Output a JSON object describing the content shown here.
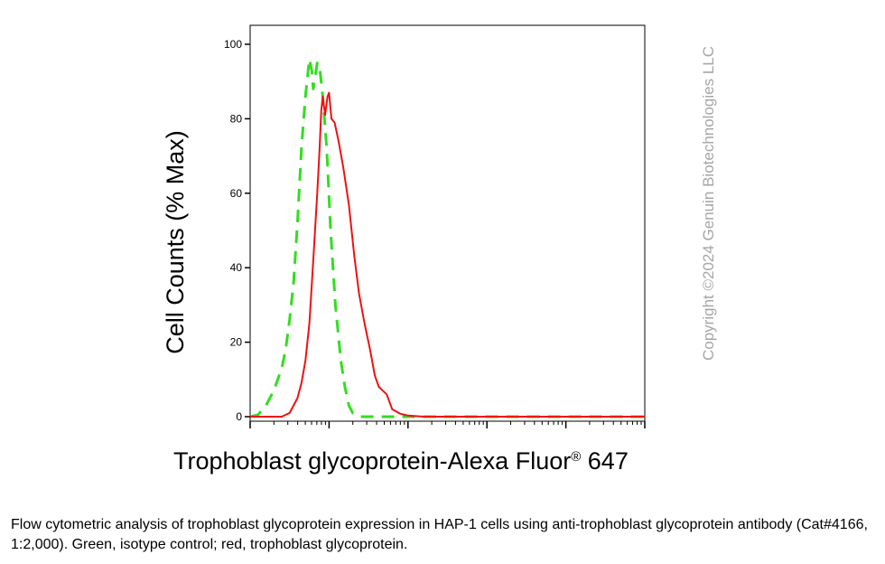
{
  "chart_data": {
    "type": "line",
    "ylabel": "Cell Counts (% Max)",
    "xlabel": "Trophoblast glycoprotein-Alexa Fluor",
    "xlabel_mark": "®",
    "xlabel_suffix": " 647",
    "yticks": [
      "0",
      "20",
      "40",
      "60",
      "80",
      "100"
    ],
    "ylim": [
      0,
      100
    ],
    "xscale": "log",
    "xlim": [
      0,
      5
    ],
    "grid": false,
    "series": [
      {
        "color": "#33dd22",
        "style": "dashed",
        "points": [
          [
            0.0,
            0
          ],
          [
            0.1,
            0.5
          ],
          [
            0.2,
            3
          ],
          [
            0.3,
            7
          ],
          [
            0.4,
            13
          ],
          [
            0.45,
            18
          ],
          [
            0.5,
            26
          ],
          [
            0.55,
            36
          ],
          [
            0.6,
            52
          ],
          [
            0.65,
            72
          ],
          [
            0.7,
            86
          ],
          [
            0.75,
            96
          ],
          [
            0.78,
            93
          ],
          [
            0.8,
            88
          ],
          [
            0.85,
            95
          ],
          [
            0.88,
            94
          ],
          [
            0.92,
            86
          ],
          [
            0.97,
            72
          ],
          [
            1.02,
            50
          ],
          [
            1.08,
            30
          ],
          [
            1.15,
            15
          ],
          [
            1.2,
            8
          ],
          [
            1.25,
            3
          ],
          [
            1.3,
            1
          ],
          [
            1.4,
            0
          ],
          [
            5.0,
            0
          ]
        ]
      },
      {
        "color": "#ee1111",
        "style": "solid",
        "points": [
          [
            0.0,
            0
          ],
          [
            0.4,
            0
          ],
          [
            0.5,
            1
          ],
          [
            0.55,
            3
          ],
          [
            0.6,
            5
          ],
          [
            0.65,
            9
          ],
          [
            0.7,
            15
          ],
          [
            0.75,
            25
          ],
          [
            0.8,
            42
          ],
          [
            0.85,
            60
          ],
          [
            0.88,
            72
          ],
          [
            0.9,
            82
          ],
          [
            0.92,
            86
          ],
          [
            0.95,
            81
          ],
          [
            0.98,
            86
          ],
          [
            1.0,
            87
          ],
          [
            1.03,
            80
          ],
          [
            1.07,
            79
          ],
          [
            1.12,
            74
          ],
          [
            1.18,
            67
          ],
          [
            1.25,
            57
          ],
          [
            1.32,
            43
          ],
          [
            1.38,
            33
          ],
          [
            1.45,
            25
          ],
          [
            1.52,
            18
          ],
          [
            1.58,
            11
          ],
          [
            1.63,
            8
          ],
          [
            1.68,
            7
          ],
          [
            1.73,
            6
          ],
          [
            1.8,
            2
          ],
          [
            1.9,
            0.8
          ],
          [
            2.0,
            0.3
          ],
          [
            2.2,
            0
          ],
          [
            5.0,
            0
          ]
        ]
      }
    ]
  },
  "watermark": "Copyright ©2024 Genuin Biotechnologies LLC",
  "caption": "Flow cytometric analysis of trophoblast glycoprotein expression in HAP-1 cells using anti-trophoblast glycoprotein antibody (Cat#4166, 1:2,000). Green, isotype control; red, trophoblast glycoprotein."
}
